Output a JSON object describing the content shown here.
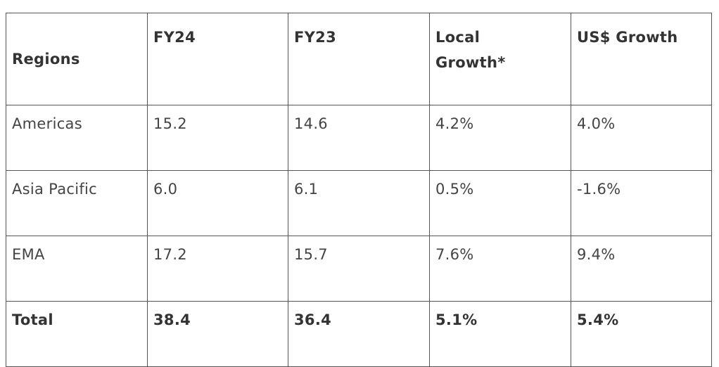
{
  "table": {
    "headers": [
      "Regions",
      "FY24",
      "FY23",
      "Local\nGrowth*",
      "US$ Growth"
    ],
    "rows": [
      [
        "Americas",
        "15.2",
        "14.6",
        "4.2%",
        "4.0%"
      ],
      [
        "Asia Pacific",
        "6.0",
        "6.1",
        "0.5%",
        "-1.6%"
      ],
      [
        "EMA",
        "17.2",
        "15.7",
        "7.6%",
        "9.4%"
      ]
    ],
    "total": [
      "Total",
      "38.4",
      "36.4",
      "5.1%",
      "5.4%"
    ]
  }
}
